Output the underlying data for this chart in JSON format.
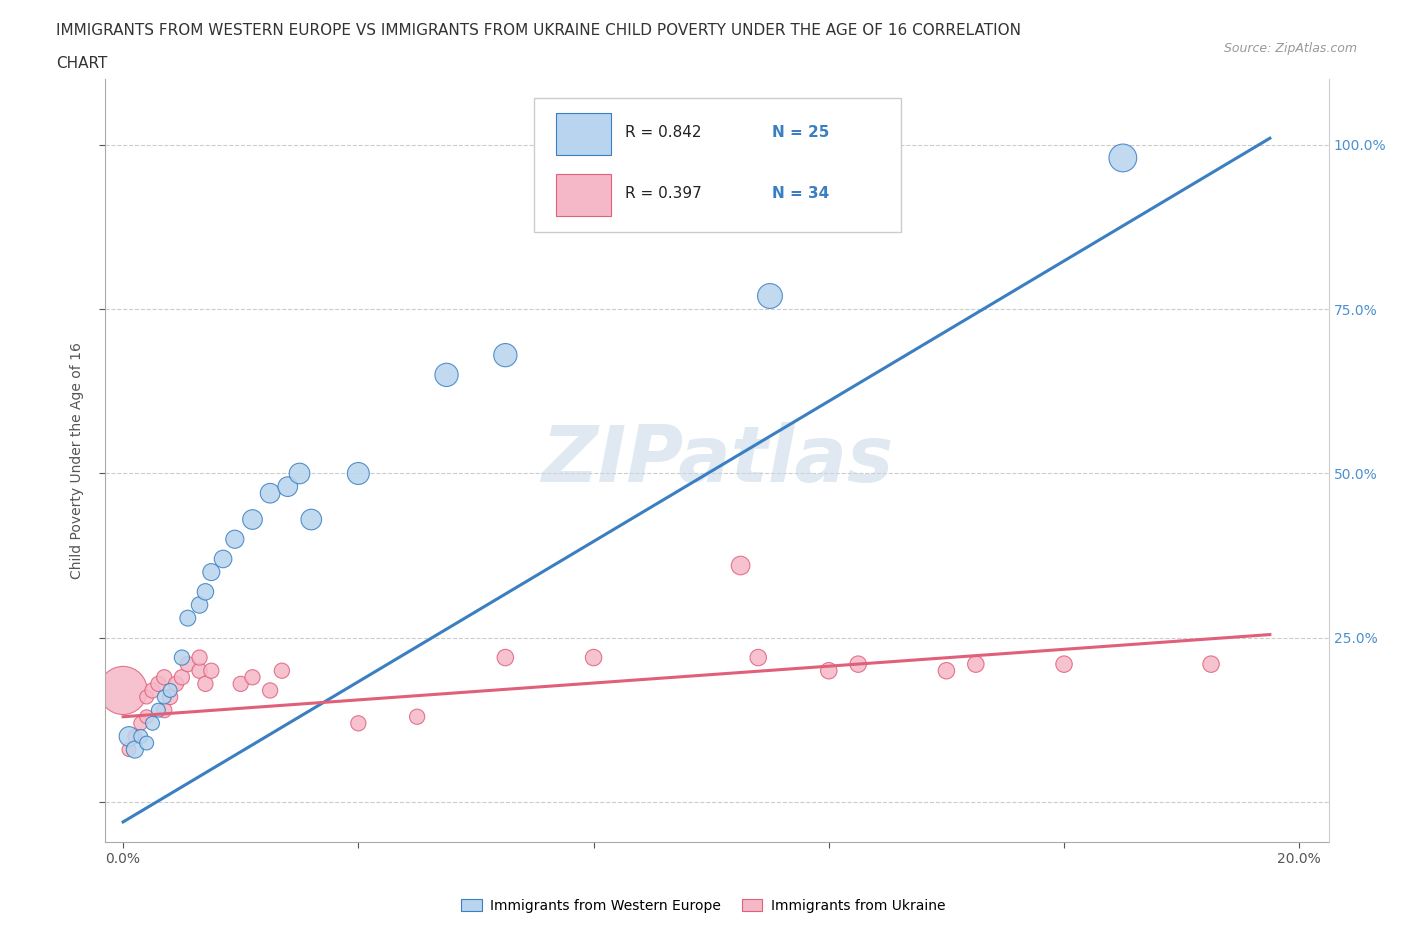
{
  "title_line1": "IMMIGRANTS FROM WESTERN EUROPE VS IMMIGRANTS FROM UKRAINE CHILD POVERTY UNDER THE AGE OF 16 CORRELATION",
  "title_line2": "CHART",
  "source": "Source: ZipAtlas.com",
  "ylabel": "Child Poverty Under the Age of 16",
  "blue_R": 0.842,
  "blue_N": 25,
  "pink_R": 0.397,
  "pink_N": 34,
  "blue_color": "#b8d4ee",
  "pink_color": "#f5b8c8",
  "blue_line_color": "#3a7fc1",
  "pink_line_color": "#e0607a",
  "watermark": "ZIPatlas",
  "blue_scatter_x": [
    0.001,
    0.002,
    0.003,
    0.004,
    0.005,
    0.006,
    0.007,
    0.008,
    0.01,
    0.011,
    0.013,
    0.014,
    0.015,
    0.017,
    0.019,
    0.022,
    0.025,
    0.028,
    0.03,
    0.032,
    0.04,
    0.055,
    0.065,
    0.11,
    0.17
  ],
  "blue_scatter_y": [
    0.1,
    0.08,
    0.1,
    0.09,
    0.12,
    0.14,
    0.16,
    0.17,
    0.22,
    0.28,
    0.3,
    0.32,
    0.35,
    0.37,
    0.4,
    0.43,
    0.47,
    0.48,
    0.5,
    0.43,
    0.5,
    0.65,
    0.68,
    0.77,
    0.98
  ],
  "blue_scatter_size": [
    200,
    150,
    100,
    100,
    100,
    100,
    100,
    100,
    120,
    130,
    140,
    140,
    150,
    160,
    170,
    200,
    200,
    200,
    220,
    220,
    250,
    280,
    280,
    320,
    400
  ],
  "pink_scatter_x": [
    0.0,
    0.001,
    0.002,
    0.003,
    0.004,
    0.004,
    0.005,
    0.006,
    0.007,
    0.007,
    0.008,
    0.009,
    0.01,
    0.011,
    0.013,
    0.013,
    0.014,
    0.015,
    0.02,
    0.022,
    0.025,
    0.027,
    0.04,
    0.05,
    0.065,
    0.08,
    0.105,
    0.108,
    0.12,
    0.125,
    0.14,
    0.145,
    0.16,
    0.185
  ],
  "pink_scatter_y": [
    0.17,
    0.08,
    0.1,
    0.12,
    0.13,
    0.16,
    0.17,
    0.18,
    0.14,
    0.19,
    0.16,
    0.18,
    0.19,
    0.21,
    0.2,
    0.22,
    0.18,
    0.2,
    0.18,
    0.19,
    0.17,
    0.2,
    0.12,
    0.13,
    0.22,
    0.22,
    0.36,
    0.22,
    0.2,
    0.21,
    0.2,
    0.21,
    0.21,
    0.21
  ],
  "pink_scatter_size": [
    1200,
    100,
    100,
    100,
    100,
    100,
    120,
    120,
    120,
    120,
    120,
    120,
    120,
    120,
    120,
    120,
    120,
    120,
    120,
    120,
    120,
    120,
    120,
    120,
    140,
    140,
    180,
    140,
    140,
    140,
    140,
    140,
    140,
    140
  ],
  "blue_line_x": [
    0.0,
    0.195
  ],
  "blue_line_y": [
    -0.03,
    1.01
  ],
  "pink_line_x": [
    0.0,
    0.195
  ],
  "pink_line_y": [
    0.13,
    0.255
  ],
  "xlim": [
    -0.003,
    0.205
  ],
  "ylim": [
    -0.06,
    1.1
  ],
  "x_tick_positions": [
    0.0,
    0.04,
    0.08,
    0.12,
    0.16,
    0.2
  ],
  "x_tick_labels": [
    "0.0%",
    "",
    "",
    "",
    "",
    "20.0%"
  ],
  "y_tick_positions": [
    0.0,
    0.25,
    0.5,
    0.75,
    1.0
  ],
  "y_tick_labels_right": [
    "",
    "25.0%",
    "50.0%",
    "75.0%",
    "100.0%"
  ]
}
